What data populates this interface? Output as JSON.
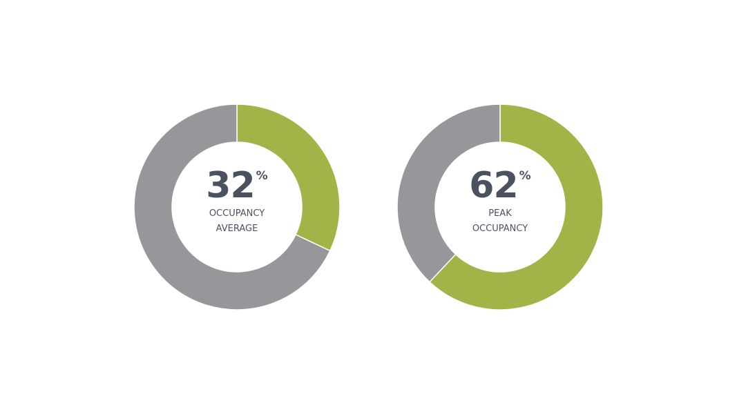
{
  "colors": {
    "filled": "#a2b447",
    "remainder": "#96979b",
    "separator": "#ffffff",
    "text": "#4a5260"
  },
  "chart_data": [
    {
      "type": "pie",
      "variant": "donut",
      "value": 32,
      "unit": "%",
      "label_lines": [
        "OCCUPANCY",
        "AVERAGE"
      ],
      "slices": [
        {
          "name": "",
          "value": 32,
          "color": "#a2b447"
        },
        {
          "name": "",
          "value": 68,
          "color": "#96979b"
        }
      ]
    },
    {
      "type": "pie",
      "variant": "donut",
      "value": 62,
      "unit": "%",
      "label_lines": [
        "PEAK",
        "OCCUPANCY"
      ],
      "slices": [
        {
          "name": "",
          "value": 62,
          "color": "#a2b447"
        },
        {
          "name": "",
          "value": 38,
          "color": "#96979b"
        }
      ]
    }
  ]
}
